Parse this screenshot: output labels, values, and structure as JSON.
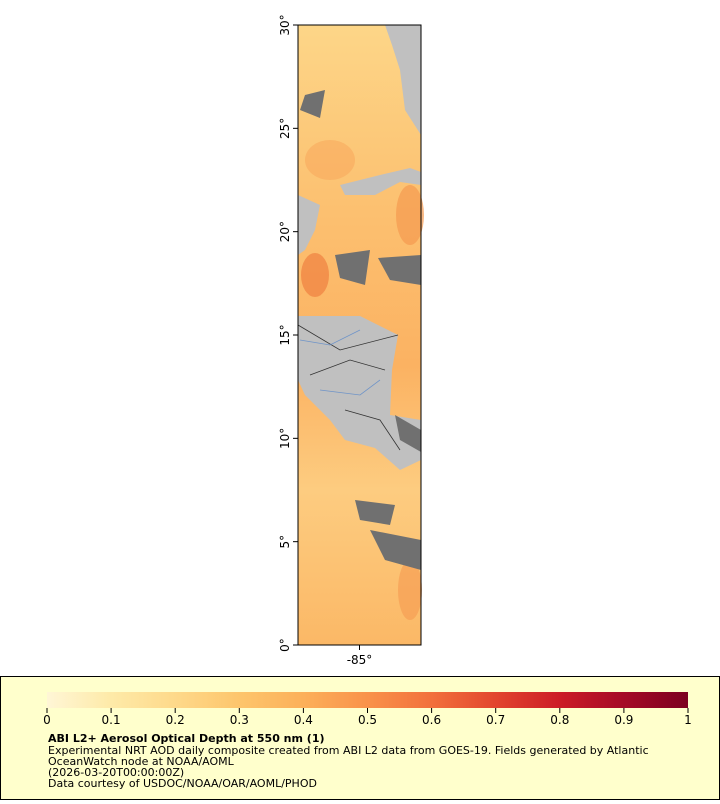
{
  "map": {
    "xlim": [
      -88,
      -82
    ],
    "ylim": [
      0,
      30
    ],
    "xticks": [
      {
        "value": -85,
        "label": "-85°"
      }
    ],
    "yticks": [
      {
        "value": 0,
        "label": "0°"
      },
      {
        "value": 5,
        "label": "5°"
      },
      {
        "value": 10,
        "label": "10°"
      },
      {
        "value": 15,
        "label": "15°"
      },
      {
        "value": 20,
        "label": "20°"
      },
      {
        "value": 25,
        "label": "25°"
      },
      {
        "value": 30,
        "label": "30°"
      }
    ]
  },
  "legend": {
    "title": "ABI L2+ Aerosol Optical Depth at 550 nm (1)",
    "lines": [
      "Experimental NRT AOD daily composite created from ABI L2 data from GOES-19. Fields generated by Atlantic",
      "OceanWatch node at NOAA/AOML",
      "(2026-03-20T00:00:00Z)",
      "Data courtesy of USDOC/NOAA/OAR/AOML/PHOD"
    ],
    "lim": [
      0,
      1
    ],
    "ticks": [
      0,
      0.1,
      0.2,
      0.3,
      0.4,
      0.5,
      0.6,
      0.7,
      0.8,
      0.9,
      1
    ],
    "colors": [
      "#fff6d6",
      "#feeaa8",
      "#fed98a",
      "#fdc56c",
      "#fcb05a",
      "#f9924a",
      "#f2703c",
      "#e2452e",
      "#cc1c26",
      "#a50a26",
      "#7c0020"
    ]
  }
}
